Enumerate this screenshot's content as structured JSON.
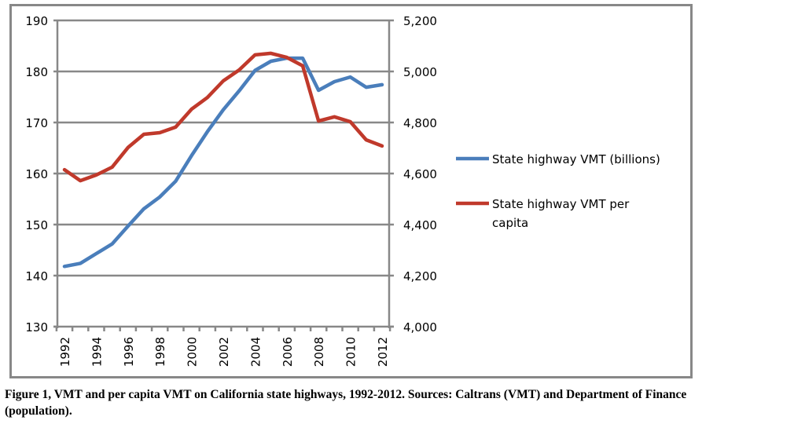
{
  "chart_data": {
    "type": "line",
    "title": "",
    "caption": "Figure 1, VMT and per capita VMT on California state highways, 1992-2012. Sources: Caltrans (VMT) and Department of Finance (population).",
    "x": [
      1992,
      1993,
      1994,
      1995,
      1996,
      1997,
      1998,
      1999,
      2000,
      2001,
      2002,
      2003,
      2004,
      2005,
      2006,
      2007,
      2008,
      2009,
      2010,
      2011,
      2012
    ],
    "x_tick_labels": [
      "1992",
      "1994",
      "1996",
      "1998",
      "2000",
      "2002",
      "2004",
      "2006",
      "2008",
      "2010",
      "2012"
    ],
    "y_left": {
      "label": "",
      "ylim": [
        130,
        190
      ],
      "ticks": [
        130,
        140,
        150,
        160,
        170,
        180,
        190
      ],
      "tick_labels": [
        "130",
        "140",
        "150",
        "160",
        "170",
        "180",
        "190"
      ]
    },
    "y_right": {
      "label": "",
      "ylim": [
        4000,
        5200
      ],
      "ticks": [
        4000,
        4200,
        4400,
        4600,
        4800,
        5000,
        5200
      ],
      "tick_labels": [
        "4,000",
        "4,200",
        "4,400",
        "4,600",
        "4,800",
        "5,000",
        "5,200"
      ]
    },
    "grid": true,
    "legend_position": "right",
    "series": [
      {
        "name": "State highway VMT (billions)",
        "axis": "left",
        "color": "#4a7ebb",
        "values": [
          141.8,
          142.4,
          144.3,
          146.2,
          149.7,
          153.1,
          155.4,
          158.5,
          163.5,
          168.2,
          172.5,
          176.2,
          180.2,
          182.0,
          182.6,
          182.6,
          176.3,
          178.0,
          178.9,
          176.9,
          177.4
        ]
      },
      {
        "name": "State highway VMT per capita",
        "legend_lines": [
          "State highway VMT per",
          "capita"
        ],
        "axis": "right",
        "color": "#c0392b",
        "values": [
          4615,
          4572,
          4594,
          4625,
          4702,
          4754,
          4760,
          4782,
          4852,
          4898,
          4963,
          5006,
          5065,
          5071,
          5055,
          5022,
          4806,
          4822,
          4803,
          4732,
          4708
        ]
      }
    ]
  }
}
